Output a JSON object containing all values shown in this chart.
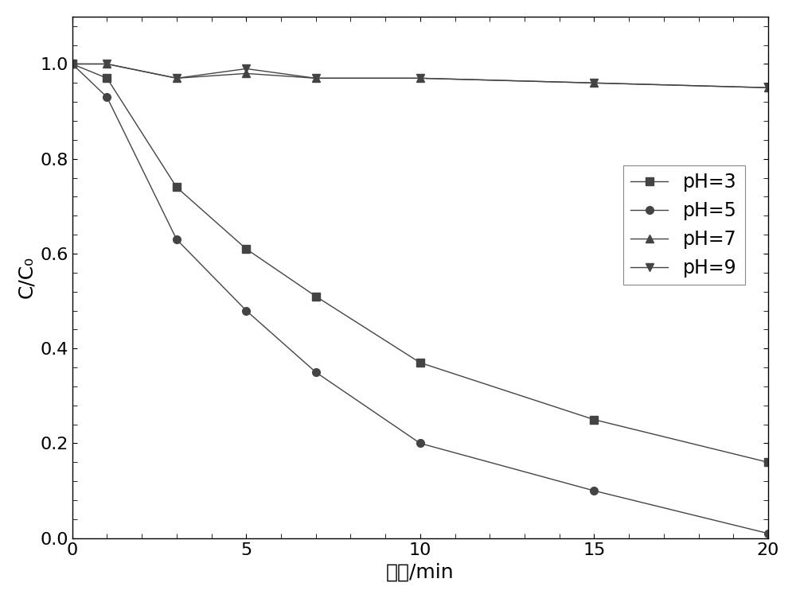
{
  "title": "",
  "xlabel": "时间/min",
  "ylabel": "C/C₀",
  "xlim": [
    0,
    20
  ],
  "ylim": [
    0.0,
    1.1
  ],
  "yticks": [
    0.0,
    0.2,
    0.4,
    0.6,
    0.8,
    1.0
  ],
  "xticks": [
    0,
    5,
    10,
    15,
    20
  ],
  "series": [
    {
      "label": "pH=3",
      "x": [
        0,
        1,
        3,
        5,
        7,
        10,
        15,
        20
      ],
      "y": [
        1.0,
        0.97,
        0.74,
        0.61,
        0.51,
        0.37,
        0.25,
        0.16
      ],
      "marker": "s",
      "color": "#444444",
      "linewidth": 1.0,
      "markersize": 7
    },
    {
      "label": "pH=5",
      "x": [
        0,
        1,
        3,
        5,
        7,
        10,
        15,
        20
      ],
      "y": [
        1.0,
        0.93,
        0.63,
        0.48,
        0.35,
        0.2,
        0.1,
        0.01
      ],
      "marker": "o",
      "color": "#444444",
      "linewidth": 1.0,
      "markersize": 7
    },
    {
      "label": "pH=7",
      "x": [
        0,
        1,
        3,
        5,
        7,
        10,
        15,
        20
      ],
      "y": [
        1.0,
        1.0,
        0.97,
        0.98,
        0.97,
        0.97,
        0.96,
        0.95
      ],
      "marker": "^",
      "color": "#444444",
      "linewidth": 1.0,
      "markersize": 7
    },
    {
      "label": "pH=9",
      "x": [
        0,
        1,
        3,
        5,
        7,
        10,
        15,
        20
      ],
      "y": [
        1.0,
        1.0,
        0.97,
        0.99,
        0.97,
        0.97,
        0.96,
        0.95
      ],
      "marker": "v",
      "color": "#444444",
      "linewidth": 1.0,
      "markersize": 7
    }
  ],
  "background_color": "#ffffff",
  "font_size": 18,
  "tick_font_size": 16,
  "legend_font_size": 17
}
